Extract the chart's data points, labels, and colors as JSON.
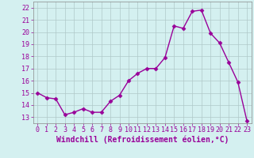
{
  "x": [
    0,
    1,
    2,
    3,
    4,
    5,
    6,
    7,
    8,
    9,
    10,
    11,
    12,
    13,
    14,
    15,
    16,
    17,
    18,
    19,
    20,
    21,
    22,
    23
  ],
  "y": [
    15.0,
    14.6,
    14.5,
    13.2,
    13.4,
    13.7,
    13.4,
    13.4,
    14.3,
    14.8,
    16.0,
    16.6,
    17.0,
    17.0,
    17.9,
    20.5,
    20.3,
    21.7,
    21.8,
    19.9,
    19.1,
    17.5,
    15.9,
    12.7
  ],
  "line_color": "#990099",
  "marker": "D",
  "marker_size": 2.5,
  "background_color": "#d4f0f0",
  "grid_color": "#b0c8c8",
  "xlabel": "Windchill (Refroidissement éolien,°C)",
  "xlabel_fontsize": 7,
  "ylim": [
    12.5,
    22.5
  ],
  "yticks": [
    13,
    14,
    15,
    16,
    17,
    18,
    19,
    20,
    21,
    22
  ],
  "xticks": [
    0,
    1,
    2,
    3,
    4,
    5,
    6,
    7,
    8,
    9,
    10,
    11,
    12,
    13,
    14,
    15,
    16,
    17,
    18,
    19,
    20,
    21,
    22,
    23
  ],
  "xlim": [
    -0.5,
    23.5
  ],
  "tick_fontsize": 6,
  "line_width": 1.0,
  "label_color": "#990099"
}
